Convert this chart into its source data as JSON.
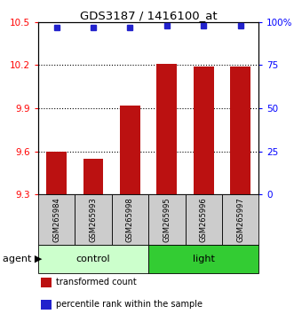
{
  "title": "GDS3187 / 1416100_at",
  "samples": [
    "GSM265984",
    "GSM265993",
    "GSM265998",
    "GSM265995",
    "GSM265996",
    "GSM265997"
  ],
  "bar_values": [
    9.6,
    9.55,
    9.92,
    10.21,
    10.19,
    10.19
  ],
  "percentile_values": [
    97,
    97,
    97,
    98,
    98,
    98
  ],
  "ylim_left": [
    9.3,
    10.5
  ],
  "ylim_right": [
    0,
    100
  ],
  "yticks_left": [
    9.3,
    9.6,
    9.9,
    10.2,
    10.5
  ],
  "yticks_right": [
    0,
    25,
    50,
    75,
    100
  ],
  "ytick_labels_right": [
    "0",
    "25",
    "50",
    "75",
    "100%"
  ],
  "bar_color": "#BB1111",
  "dot_color": "#2222CC",
  "groups": [
    {
      "label": "control",
      "indices": [
        0,
        1,
        2
      ],
      "color": "#CCFFCC"
    },
    {
      "label": "light",
      "indices": [
        3,
        4,
        5
      ],
      "color": "#33CC33"
    }
  ],
  "agent_label": "agent",
  "legend_items": [
    {
      "color": "#BB1111",
      "label": "transformed count"
    },
    {
      "color": "#2222CC",
      "label": "percentile rank within the sample"
    }
  ],
  "bar_width": 0.55,
  "sample_box_color": "#CCCCCC"
}
